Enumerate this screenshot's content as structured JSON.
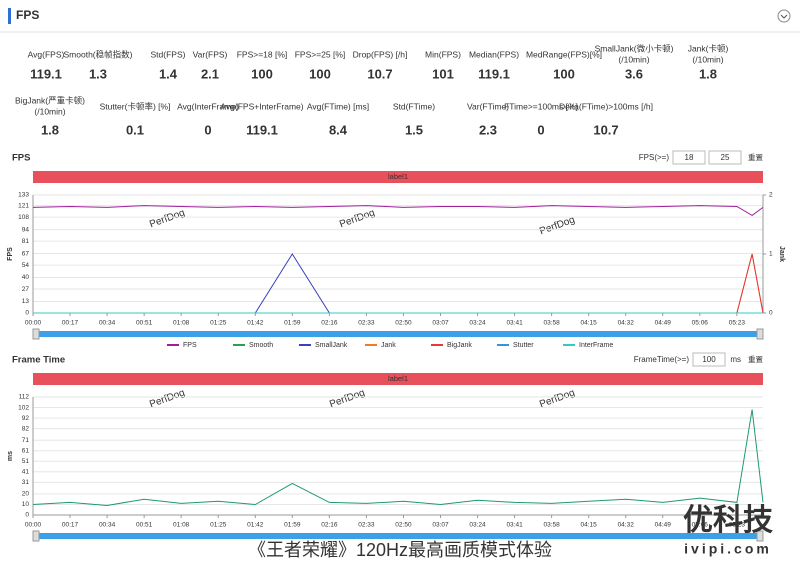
{
  "header": {
    "title": "FPS"
  },
  "stats": [
    {
      "label": [
        "Avg(FPS)"
      ],
      "value": 119.1
    },
    {
      "label": [
        "Smooth(稳帧指数)"
      ],
      "value": 1.3
    },
    {
      "label": [
        "Std(FPS)"
      ],
      "value": 1.4
    },
    {
      "label": [
        "Var(FPS)"
      ],
      "value": 2.1
    },
    {
      "label": [
        "FPS>=18 [%]"
      ],
      "value": 100
    },
    {
      "label": [
        "FPS>=25 [%]"
      ],
      "value": 100
    },
    {
      "label": [
        "Drop(FPS) [/h]"
      ],
      "value": 10.7
    },
    {
      "label": [
        "Min(FPS)"
      ],
      "value": 101
    },
    {
      "label": [
        "Median(FPS)"
      ],
      "value": 119.1
    },
    {
      "label": [
        "MedRange(FPS)[%]"
      ],
      "value": 100
    },
    {
      "label": [
        "SmallJank(微小卡顿)",
        "(/10min)"
      ],
      "value": 3.6
    },
    {
      "label": [
        "Jank(卡顿)",
        "(/10min)"
      ],
      "value": 1.8
    },
    {
      "label": [
        "BigJank(严重卡顿)",
        "(/10min)"
      ],
      "value": 1.8
    },
    {
      "label": [
        "Stutter(卡顿率) [%]"
      ],
      "value": 0.1
    },
    {
      "label": [
        "Avg(InterFrame)"
      ],
      "value": 0
    },
    {
      "label": [
        "Avg(FPS+InterFrame)"
      ],
      "value": 119.1
    },
    {
      "label": [
        "Avg(FTime) [ms]"
      ],
      "value": 8.4
    },
    {
      "label": [
        "Std(FTime)"
      ],
      "value": 1.5
    },
    {
      "label": [
        "Var(FTime)"
      ],
      "value": 2.3
    },
    {
      "label": [
        "FTime>=100ms [%]"
      ],
      "value": 0
    },
    {
      "label": [
        "Delta(FTime)>100ms [/h]"
      ],
      "value": 10.7
    }
  ],
  "watermark": "PerfDog",
  "caption": "《王者荣耀》120Hz最高画质模式体验",
  "logo": {
    "name": "优科技",
    "site": "ivipi.com"
  },
  "chart_data": [
    {
      "type": "line",
      "title": "FPS",
      "band_label": "label1",
      "controls": {
        "label": "FPS(>=)",
        "inputs": [
          18,
          25
        ],
        "reset": "重置"
      },
      "ylabel": "FPS",
      "y2label": "Jank",
      "x": [
        0,
        17,
        34,
        51,
        68,
        85,
        102,
        119,
        136,
        153,
        170,
        187,
        204,
        221,
        238,
        255,
        272,
        289,
        306,
        323,
        330,
        335
      ],
      "xlim": [
        0,
        335
      ],
      "xticks": [
        {
          "value": 0,
          "label": "00:00"
        },
        {
          "value": 17,
          "label": "00:17"
        },
        {
          "value": 34,
          "label": "00:34"
        },
        {
          "value": 51,
          "label": "00:51"
        },
        {
          "value": 68,
          "label": "01:08"
        },
        {
          "value": 85,
          "label": "01:25"
        },
        {
          "value": 102,
          "label": "01:42"
        },
        {
          "value": 119,
          "label": "01:59"
        },
        {
          "value": 136,
          "label": "02:16"
        },
        {
          "value": 153,
          "label": "02:33"
        },
        {
          "value": 170,
          "label": "02:50"
        },
        {
          "value": 187,
          "label": "03:07"
        },
        {
          "value": 204,
          "label": "03:24"
        },
        {
          "value": 221,
          "label": "03:41"
        },
        {
          "value": 238,
          "label": "03:58"
        },
        {
          "value": 255,
          "label": "04:15"
        },
        {
          "value": 272,
          "label": "04:32"
        },
        {
          "value": 289,
          "label": "04:49"
        },
        {
          "value": 306,
          "label": "05:06"
        },
        {
          "value": 323,
          "label": "05:23"
        }
      ],
      "ylim": [
        0,
        133
      ],
      "yticks": [
        0,
        13,
        27,
        40,
        54,
        67,
        81,
        94,
        108,
        121,
        133
      ],
      "y2lim": [
        0,
        2
      ],
      "y2ticks": [
        0,
        1,
        2
      ],
      "legend": true,
      "series": [
        {
          "name": "FPS",
          "color": "#a0209a",
          "values": [
            119,
            120,
            119,
            121,
            120,
            119,
            120,
            119,
            120,
            121,
            119,
            120,
            120,
            119,
            121,
            120,
            119,
            120,
            121,
            120,
            110,
            119
          ]
        },
        {
          "name": "Smooth",
          "color": "#2e9e4f",
          "values": [
            0,
            0,
            0,
            0,
            0,
            0,
            0,
            0,
            0,
            0,
            0,
            0,
            0,
            0,
            0,
            0,
            0,
            0,
            0,
            0,
            0,
            0
          ]
        },
        {
          "name": "SmallJank",
          "color": "#3a40c0",
          "axis": "y2",
          "values": [
            0,
            0,
            0,
            0,
            0,
            0,
            0,
            1,
            0,
            0,
            0,
            0,
            0,
            0,
            0,
            0,
            0,
            0,
            0,
            0,
            0,
            0
          ]
        },
        {
          "name": "Jank",
          "color": "#f07a2a",
          "axis": "y2",
          "values": [
            0,
            0,
            0,
            0,
            0,
            0,
            0,
            0,
            0,
            0,
            0,
            0,
            0,
            0,
            0,
            0,
            0,
            0,
            0,
            0,
            1,
            0
          ]
        },
        {
          "name": "BigJank",
          "color": "#e03a3a",
          "axis": "y2",
          "values": [
            0,
            0,
            0,
            0,
            0,
            0,
            0,
            0,
            0,
            0,
            0,
            0,
            0,
            0,
            0,
            0,
            0,
            0,
            0,
            0,
            1,
            0
          ]
        },
        {
          "name": "Stutter",
          "color": "#3096e0",
          "values": [
            0,
            0,
            0,
            0,
            0,
            0,
            0,
            0,
            0,
            0,
            0,
            0,
            0,
            0,
            0,
            0,
            0,
            0,
            0,
            0,
            0,
            0
          ]
        },
        {
          "name": "InterFrame",
          "color": "#36c8c4",
          "values": [
            0,
            0,
            0,
            0,
            0,
            0,
            0,
            0,
            0,
            0,
            0,
            0,
            0,
            0,
            0,
            0,
            0,
            0,
            0,
            0,
            0,
            0
          ]
        }
      ]
    },
    {
      "type": "line",
      "title": "Frame Time",
      "band_label": "label1",
      "controls": {
        "label": "FrameTime(>=)",
        "inputs": [
          100
        ],
        "unit": "ms",
        "reset": "重置"
      },
      "ylabel": "ms",
      "x": [
        0,
        17,
        34,
        51,
        68,
        85,
        102,
        119,
        136,
        153,
        170,
        187,
        204,
        221,
        238,
        255,
        272,
        289,
        306,
        323,
        330,
        335
      ],
      "xlim": [
        0,
        335
      ],
      "xticks": [
        {
          "value": 0,
          "label": "00:00"
        },
        {
          "value": 17,
          "label": "00:17"
        },
        {
          "value": 34,
          "label": "00:34"
        },
        {
          "value": 51,
          "label": "00:51"
        },
        {
          "value": 68,
          "label": "01:08"
        },
        {
          "value": 85,
          "label": "01:25"
        },
        {
          "value": 102,
          "label": "01:42"
        },
        {
          "value": 119,
          "label": "01:59"
        },
        {
          "value": 136,
          "label": "02:16"
        },
        {
          "value": 153,
          "label": "02:33"
        },
        {
          "value": 170,
          "label": "02:50"
        },
        {
          "value": 187,
          "label": "03:07"
        },
        {
          "value": 204,
          "label": "03:24"
        },
        {
          "value": 221,
          "label": "03:41"
        },
        {
          "value": 238,
          "label": "03:58"
        },
        {
          "value": 255,
          "label": "04:15"
        },
        {
          "value": 272,
          "label": "04:32"
        },
        {
          "value": 289,
          "label": "04:49"
        },
        {
          "value": 306,
          "label": "05:06"
        },
        {
          "value": 323,
          "label": "05:23"
        }
      ],
      "ylim": [
        0,
        112
      ],
      "yticks": [
        0,
        10,
        20,
        31,
        41,
        51,
        61,
        71,
        82,
        92,
        102,
        112
      ],
      "legend": false,
      "series": [
        {
          "name": "FrameTime",
          "color": "#1f9a6a",
          "values": [
            10,
            12,
            9,
            15,
            11,
            13,
            10,
            30,
            12,
            11,
            13,
            10,
            14,
            12,
            11,
            13,
            15,
            12,
            16,
            12,
            100,
            12
          ]
        }
      ]
    }
  ]
}
